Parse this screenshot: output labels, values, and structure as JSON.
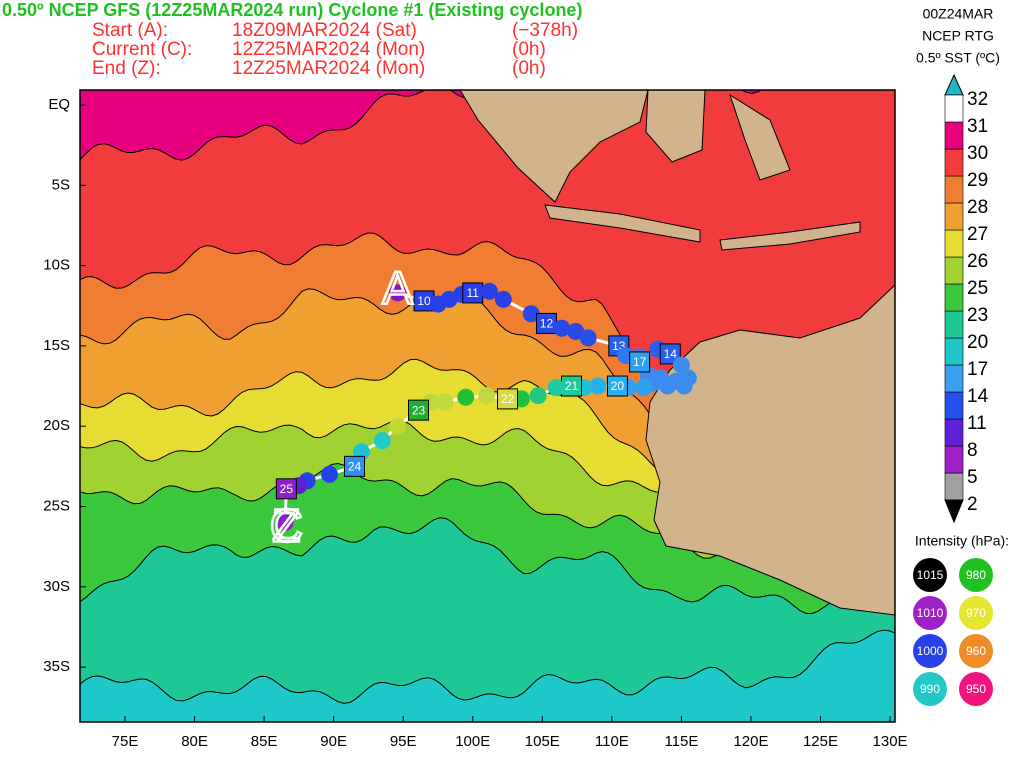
{
  "header": {
    "title": "0.50º NCEP GFS (12Z25MAR2024 run) Cyclone #1 (Existing cyclone)",
    "rows": [
      [
        "Start (A):",
        "18Z09MAR2024 (Sat)",
        "(−378h)"
      ],
      [
        "Current (C):",
        "12Z25MAR2024 (Mon)",
        "(0h)"
      ],
      [
        "End (Z):",
        "12Z25MAR2024 (Mon)",
        "(0h)"
      ]
    ]
  },
  "info": [
    "00Z24MAR",
    "NCEP RTG",
    "0.5º SST (ºC)"
  ],
  "colorbar": {
    "levels": [
      2,
      5,
      8,
      11,
      14,
      17,
      20,
      23,
      25,
      26,
      27,
      28,
      29,
      30,
      31,
      32
    ],
    "colors": [
      "#a0a0a0",
      "#a020c8",
      "#6020d8",
      "#2850f0",
      "#3ca0f0",
      "#1ec8c8",
      "#1ec896",
      "#3cc83c",
      "#a0d232",
      "#e6dc32",
      "#f0a030",
      "#f07d32",
      "#f03c3c",
      "#e6007e",
      "#ffffff"
    ],
    "over_color": "#20b8c8",
    "under_color": "#000000"
  },
  "intensity": {
    "title": "Intensity (hPa):",
    "items": [
      {
        "label": "1015",
        "color": "#000000"
      },
      {
        "label": "980",
        "color": "#20c020"
      },
      {
        "label": "1010",
        "color": "#a020c8"
      },
      {
        "label": "970",
        "color": "#e6e632"
      },
      {
        "label": "1000",
        "color": "#2840e8"
      },
      {
        "label": "960",
        "color": "#f08c28"
      },
      {
        "label": "990",
        "color": "#20c8c8"
      },
      {
        "label": "950",
        "color": "#f0147e"
      }
    ]
  },
  "axes": {
    "lon_ticks": [
      {
        "value": 75,
        "label": "75E"
      },
      {
        "value": 80,
        "label": "80E"
      },
      {
        "value": 85,
        "label": "85E"
      },
      {
        "value": 90,
        "label": "90E"
      },
      {
        "value": 95,
        "label": "95E"
      },
      {
        "value": 100,
        "label": "100E"
      },
      {
        "value": 105,
        "label": "105E"
      },
      {
        "value": 110,
        "label": "110E"
      },
      {
        "value": 115,
        "label": "115E"
      },
      {
        "value": 120,
        "label": "120E"
      },
      {
        "value": 125,
        "label": "125E"
      },
      {
        "value": 130,
        "label": "130E"
      }
    ],
    "lat_ticks": [
      {
        "value": 0,
        "label": "EQ"
      },
      {
        "value": -5,
        "label": "5S"
      },
      {
        "value": -10,
        "label": "10S"
      },
      {
        "value": -15,
        "label": "15S"
      },
      {
        "value": -20,
        "label": "20S"
      },
      {
        "value": -25,
        "label": "25S"
      },
      {
        "value": -30,
        "label": "30S"
      },
      {
        "value": -35,
        "label": "35S"
      }
    ]
  },
  "track": {
    "points": [
      {
        "lon": 94.6,
        "lat": -11.7,
        "color": "#9010c8"
      },
      {
        "lon": 96.5,
        "lat": -12.2,
        "color": "#2840e8",
        "label": "10"
      },
      {
        "lon": 97.5,
        "lat": -12.4,
        "color": "#2840e8"
      },
      {
        "lon": 98.3,
        "lat": -12.1,
        "color": "#2840e8"
      },
      {
        "lon": 99.2,
        "lat": -11.8,
        "color": "#2840e8"
      },
      {
        "lon": 100,
        "lat": -11.7,
        "color": "#2840e8",
        "label": "11"
      },
      {
        "lon": 101.2,
        "lat": -11.6,
        "color": "#2840e8"
      },
      {
        "lon": 102.2,
        "lat": -12.1,
        "color": "#2840e8"
      },
      {
        "lon": 104.2,
        "lat": -13.0,
        "color": "#2848e8"
      },
      {
        "lon": 105.3,
        "lat": -13.6,
        "color": "#2848e8",
        "label": "12"
      },
      {
        "lon": 106.4,
        "lat": -13.9,
        "color": "#2848e8"
      },
      {
        "lon": 107.4,
        "lat": -14.1,
        "color": "#2848e8"
      },
      {
        "lon": 108.3,
        "lat": -14.5,
        "color": "#2850e8"
      },
      {
        "lon": 110.5,
        "lat": -15.0,
        "color": "#2860f0",
        "label": "13"
      },
      {
        "lon": 111,
        "lat": -15.6,
        "color": "#3078f0"
      },
      {
        "lon": 112,
        "lat": -15.7,
        "color": "#3078f0"
      },
      {
        "lon": 113.3,
        "lat": -15.2,
        "color": "#2860f0"
      },
      {
        "lon": 114.2,
        "lat": -15.5,
        "color": "#2860f0",
        "label": "14"
      },
      {
        "lon": 115,
        "lat": -16.2,
        "color": "#3c8cf0"
      },
      {
        "lon": 115.5,
        "lat": -17.0,
        "color": "#3c8cf0"
      },
      {
        "lon": 115.2,
        "lat": -17.5,
        "color": "#3c8cf0"
      },
      {
        "lon": 114.6,
        "lat": -17.2,
        "color": "#3c8cf0"
      },
      {
        "lon": 114,
        "lat": -17.5,
        "color": "#3c8cf0"
      },
      {
        "lon": 113.5,
        "lat": -17.0,
        "color": "#3c8cf0"
      },
      {
        "lon": 113,
        "lat": -17.3,
        "color": "#3c8cf0"
      },
      {
        "lon": 112.6,
        "lat": -16.8,
        "color": "#3c8cf0"
      },
      {
        "lon": 112,
        "lat": -16.0,
        "color": "#30a0f0",
        "label": "17"
      },
      {
        "lon": 112.3,
        "lat": -17.6,
        "color": "#30a0f0"
      },
      {
        "lon": 111.2,
        "lat": -17.6,
        "color": "#30a0f0"
      },
      {
        "lon": 110.4,
        "lat": -17.5,
        "color": "#28b0f0",
        "label": "20"
      },
      {
        "lon": 109,
        "lat": -17.5,
        "color": "#28b0f0"
      },
      {
        "lon": 108,
        "lat": -17.6,
        "color": "#20c0d8"
      },
      {
        "lon": 107.1,
        "lat": -17.5,
        "color": "#20c8a0",
        "label": "21"
      },
      {
        "lon": 106,
        "lat": -17.6,
        "color": "#20c8a0"
      },
      {
        "lon": 104.7,
        "lat": -18.1,
        "color": "#20c880"
      },
      {
        "lon": 103.5,
        "lat": -18.3,
        "color": "#20c040"
      },
      {
        "lon": 102.5,
        "lat": -18.3,
        "color": "#d8d840",
        "label": "22"
      },
      {
        "lon": 101,
        "lat": -18.1,
        "color": "#c0d840"
      },
      {
        "lon": 99.5,
        "lat": -18.2,
        "color": "#20c030"
      },
      {
        "lon": 98,
        "lat": -18.5,
        "color": "#c0d840"
      },
      {
        "lon": 97,
        "lat": -18.5,
        "color": "#c0d840"
      },
      {
        "lon": 96.1,
        "lat": -19.0,
        "color": "#20b030",
        "label": "23"
      },
      {
        "lon": 94.6,
        "lat": -20.0,
        "color": "#c0d830"
      },
      {
        "lon": 93.5,
        "lat": -20.9,
        "color": "#20c8c8"
      },
      {
        "lon": 92.0,
        "lat": -21.6,
        "color": "#20c0d0"
      },
      {
        "lon": 91.5,
        "lat": -22.5,
        "color": "#3090f0",
        "label": "24"
      },
      {
        "lon": 89.7,
        "lat": -23.0,
        "color": "#2840e8"
      },
      {
        "lon": 88.1,
        "lat": -23.4,
        "color": "#2840e8"
      },
      {
        "lon": 87.5,
        "lat": -23.7,
        "color": "#6020d0"
      },
      {
        "lon": 86.6,
        "lat": -23.9,
        "color": "#9020c8",
        "label": "25"
      },
      {
        "lon": 86.5,
        "lat": -26.0,
        "color": "#9020c8"
      }
    ],
    "markers": [
      {
        "label": "A",
        "lon": 94.6,
        "lat": -11.5
      },
      {
        "label": "C",
        "lon": 86.6,
        "lat": -26.3
      },
      {
        "label": "Z",
        "lon": 86.6,
        "lat": -26.3
      }
    ]
  }
}
